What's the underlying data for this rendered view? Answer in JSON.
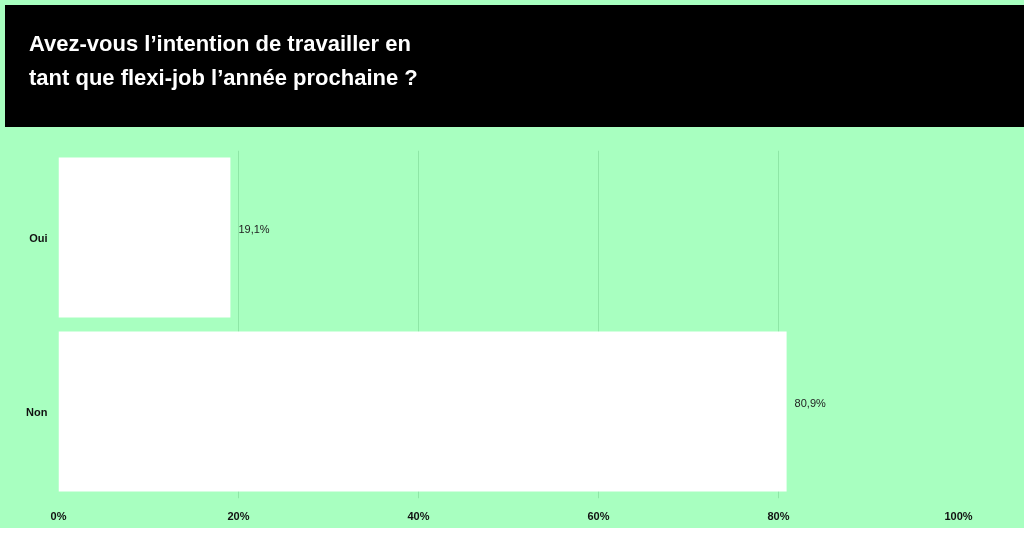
{
  "chart_data": {
    "type": "bar",
    "orientation": "horizontal",
    "title": "Avez-vous l’intention de travailler en tant que flexi-job l’année prochaine ?",
    "categories": [
      "Oui",
      "Non"
    ],
    "values": [
      19.1,
      80.9
    ],
    "value_labels": [
      "19,1%",
      "80,9%"
    ],
    "color": "#ffffff",
    "xlim": [
      0,
      100
    ],
    "xticks": [
      {
        "value": 0,
        "label": "0%"
      },
      {
        "value": 20,
        "label": "20%"
      },
      {
        "value": 40,
        "label": "40%"
      },
      {
        "value": 60,
        "label": "60%"
      },
      {
        "value": 80,
        "label": "80%"
      },
      {
        "value": 100,
        "label": "100%"
      }
    ],
    "grid": "x"
  }
}
